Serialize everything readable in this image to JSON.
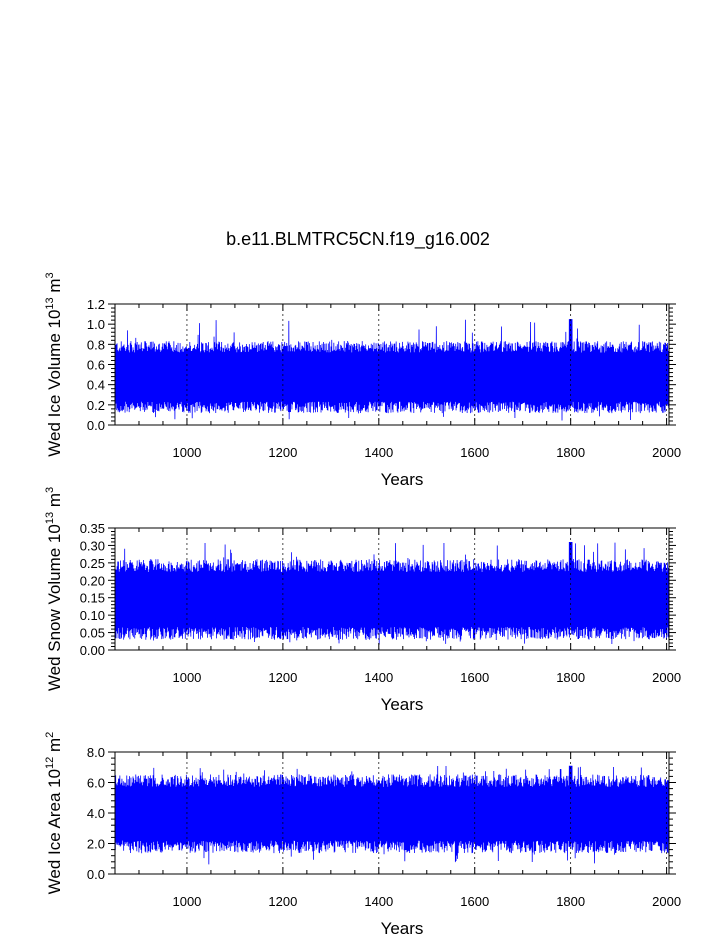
{
  "title": "b.e11.BLMTRC5CN.f19_g16.002",
  "colors": {
    "series": "#0000ff",
    "axis": "#000000",
    "grid": "#000000",
    "background": "#ffffff"
  },
  "chart_data": [
    {
      "type": "line",
      "xlabel": "Years",
      "ylabel": {
        "prefix": "Wed Ice Volume 10",
        "exp1": "13",
        "mid": " m",
        "exp2": "3"
      },
      "xlim": [
        850,
        2005
      ],
      "ylim": [
        0,
        1.2
      ],
      "x_ticks": [
        "1000",
        "1200",
        "1400",
        "1600",
        "1800",
        "2000"
      ],
      "y_ticks": [
        "0.0",
        "0.2",
        "0.4",
        "0.6",
        "0.8",
        "1.0",
        "1.2"
      ],
      "grid": "vertical dashed at major x ticks",
      "series_summary": {
        "x_start": 850,
        "x_end": 2005,
        "band_low": 0.15,
        "band_high": 0.8,
        "min": 0.04,
        "max": 1.05,
        "peak_year": 1800
      }
    },
    {
      "type": "line",
      "xlabel": "Years",
      "ylabel": {
        "prefix": "Wed Snow Volume 10",
        "exp1": "13",
        "mid": " m",
        "exp2": "3"
      },
      "xlim": [
        850,
        2005
      ],
      "ylim": [
        0,
        0.35
      ],
      "x_ticks": [
        "1000",
        "1200",
        "1400",
        "1600",
        "1800",
        "2000"
      ],
      "y_ticks": [
        "0.00",
        "0.05",
        "0.10",
        "0.15",
        "0.20",
        "0.25",
        "0.30",
        "0.35"
      ],
      "grid": "vertical dashed at major x ticks",
      "series_summary": {
        "x_start": 850,
        "x_end": 2005,
        "band_low": 0.04,
        "band_high": 0.25,
        "min": 0.015,
        "max": 0.31,
        "peak_year": 1800
      }
    },
    {
      "type": "line",
      "xlabel": "Years",
      "ylabel": {
        "prefix": "Wed Ice Area 10",
        "exp1": "12",
        "mid": " m",
        "exp2": "2"
      },
      "xlim": [
        850,
        2005
      ],
      "ylim": [
        0,
        8
      ],
      "x_ticks": [
        "1000",
        "1200",
        "1400",
        "1600",
        "1800",
        "2000"
      ],
      "y_ticks": [
        "0.0",
        "2.0",
        "4.0",
        "6.0",
        "8.0"
      ],
      "grid": "vertical dashed at major x ticks",
      "series_summary": {
        "x_start": 850,
        "x_end": 2005,
        "band_low": 1.6,
        "band_high": 6.3,
        "min": 0.6,
        "max": 7.1,
        "peak_year": 1800
      }
    }
  ]
}
